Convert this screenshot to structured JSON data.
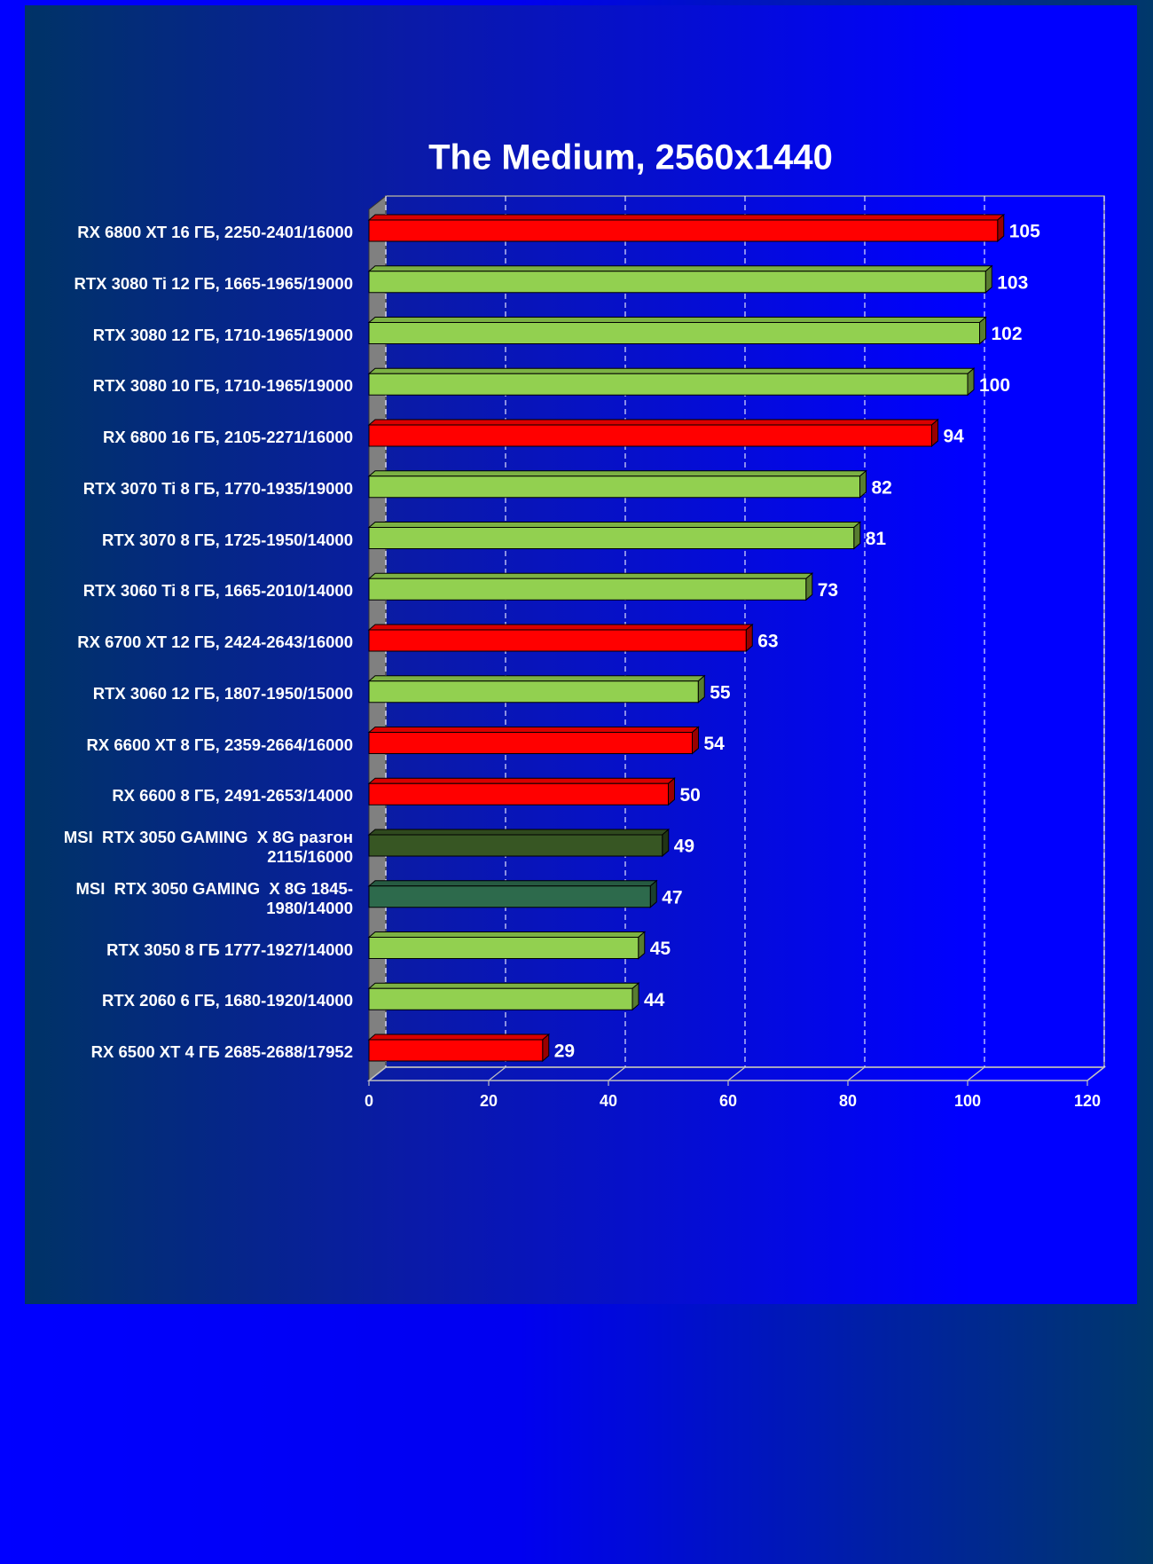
{
  "chart_data": {
    "type": "bar3d",
    "orientation": "horizontal",
    "title": "The Medium, 2560x1440",
    "categories": [
      "RX 6800 XT 16 ГБ, 2250-2401/16000",
      "RTX 3080 Ti 12 ГБ, 1665-1965/19000",
      "RTX 3080 12 ГБ, 1710-1965/19000",
      "RTX 3080 10 ГБ, 1710-1965/19000",
      "RX 6800 16 ГБ, 2105-2271/16000",
      "RTX 3070 Ti 8 ГБ, 1770-1935/19000",
      "RTX 3070 8 ГБ, 1725-1950/14000",
      "RTX 3060 Ti 8 ГБ, 1665-2010/14000",
      "RX 6700 XT 12 ГБ, 2424-2643/16000",
      "RTX 3060 12 ГБ, 1807-1950/15000",
      "RX 6600 XT 8 ГБ, 2359-2664/16000",
      "RX 6600 8 ГБ, 2491-2653/14000",
      "MSI  RTX 3050 GAMING  X 8G разгон 2115/16000",
      "MSI  RTX 3050 GAMING  X 8G 1845-1980/14000",
      "RTX 3050 8 ГБ 1777-1927/14000",
      "RTX 2060 6 ГБ, 1680-1920/14000",
      "RX 6500 XT 4 ГБ 2685-2688/17952"
    ],
    "values": [
      105,
      103,
      102,
      100,
      94,
      82,
      81,
      73,
      63,
      55,
      54,
      50,
      49,
      47,
      45,
      44,
      29
    ],
    "colors": [
      "#ff0000",
      "#92d050",
      "#92d050",
      "#92d050",
      "#ff0000",
      "#92d050",
      "#92d050",
      "#92d050",
      "#ff0000",
      "#92d050",
      "#ff0000",
      "#ff0000",
      "#375623",
      "#2d6a4c",
      "#92d050",
      "#92d050",
      "#ff0000"
    ],
    "xlim": [
      0,
      120
    ],
    "xticks": [
      0,
      20,
      40,
      60,
      80,
      100,
      120
    ],
    "grid": true
  }
}
